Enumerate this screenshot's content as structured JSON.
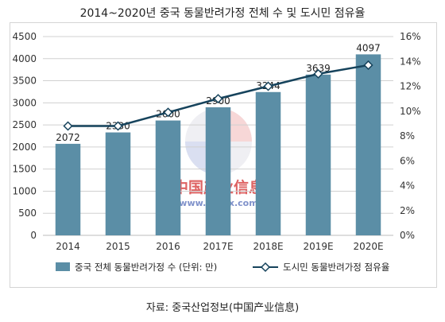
{
  "page": {
    "title": "2014~2020년 중국 동물반려가정 전체 수 및 도시민 점유율",
    "source": "자료: 중국산업정보(中国产业信息)"
  },
  "chart_data": {
    "type": "bar",
    "categories": [
      "2014",
      "2015",
      "2016",
      "2017E",
      "2018E",
      "2019E",
      "2020E"
    ],
    "series": [
      {
        "name": "중국 전체 동물반려가정 수 (단위: 만)",
        "type": "bar",
        "axis": "left",
        "values": [
          2072,
          2330,
          2600,
          2900,
          3244,
          3639,
          4097
        ],
        "labels": [
          "2072",
          "2330",
          "2600",
          "2900",
          "3244",
          "3639",
          "4097"
        ],
        "color": "#5b8ea6"
      },
      {
        "name": "도시민 동물반려가정 점유율",
        "type": "line",
        "axis": "right",
        "values": [
          8.8,
          8.8,
          9.9,
          11.0,
          12.0,
          13.0,
          13.7
        ],
        "color": "#16435c"
      }
    ],
    "y_left": {
      "min": 0,
      "max": 4500,
      "step": 500,
      "ticks": [
        "0",
        "500",
        "1000",
        "1500",
        "2000",
        "2500",
        "3000",
        "3500",
        "4000",
        "4500"
      ]
    },
    "y_right": {
      "min": 0,
      "max": 16,
      "step": 2,
      "ticks": [
        "0%",
        "2%",
        "4%",
        "6%",
        "8%",
        "10%",
        "12%",
        "14%",
        "16%"
      ]
    },
    "grid": true,
    "legend": "bottom",
    "watermark": {
      "text_cn": "中国产业信息",
      "url": "www.chyxx.com"
    }
  }
}
